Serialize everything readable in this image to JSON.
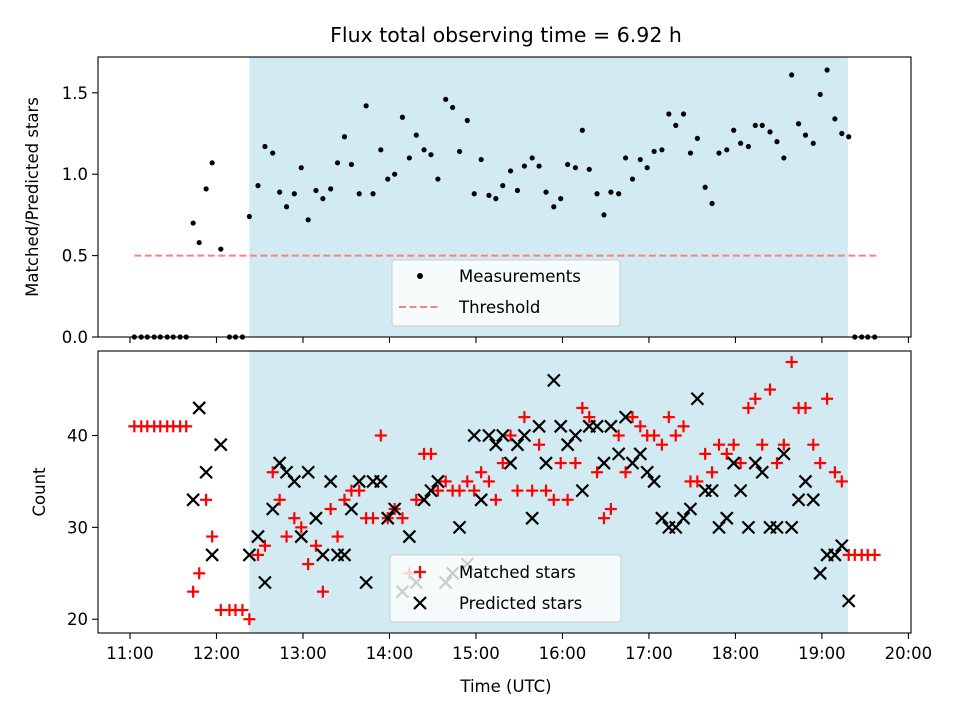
{
  "chart_data": [
    {
      "type": "scatter",
      "title": "Flux total observing time = 6.92 h",
      "ylabel": "Matched/Predicted stars",
      "xlim": [
        10.63,
        20.03
      ],
      "ylim": [
        0,
        1.72
      ],
      "yticks": [
        0.0,
        0.5,
        1.0,
        1.5
      ],
      "ytick_labels": [
        "0.0",
        "0.5",
        "1.0",
        "1.5"
      ],
      "shaded_span": [
        12.38,
        19.3
      ],
      "shaded_color": "#add8e6",
      "legend_position": "lower center",
      "legend": [
        "Measurements",
        "Threshold"
      ],
      "threshold": {
        "name": "Threshold",
        "y": 0.5,
        "x_range": [
          11.05,
          19.65
        ],
        "color": "#ff7f7f",
        "style": "dashed"
      },
      "series": [
        {
          "name": "Measurements",
          "color": "#000000",
          "marker": "dot",
          "x": [
            11.05,
            11.13,
            11.2,
            11.28,
            11.35,
            11.43,
            11.5,
            11.58,
            11.65,
            11.73,
            11.8,
            11.88,
            11.95,
            12.05,
            12.15,
            12.22,
            12.3,
            12.38,
            12.48,
            12.56,
            12.65,
            12.73,
            12.81,
            12.9,
            12.98,
            13.06,
            13.15,
            13.23,
            13.32,
            13.4,
            13.48,
            13.56,
            13.65,
            13.73,
            13.81,
            13.9,
            13.98,
            14.06,
            14.15,
            14.23,
            14.31,
            14.4,
            14.48,
            14.56,
            14.65,
            14.73,
            14.81,
            14.9,
            14.98,
            15.06,
            15.15,
            15.23,
            15.31,
            15.4,
            15.48,
            15.56,
            15.65,
            15.73,
            15.81,
            15.9,
            15.98,
            16.06,
            16.15,
            16.23,
            16.31,
            16.4,
            16.48,
            16.56,
            16.65,
            16.73,
            16.81,
            16.9,
            16.98,
            17.06,
            17.15,
            17.23,
            17.31,
            17.4,
            17.48,
            17.56,
            17.65,
            17.73,
            17.81,
            17.9,
            17.98,
            18.06,
            18.15,
            18.23,
            18.31,
            18.4,
            18.48,
            18.56,
            18.65,
            18.73,
            18.81,
            18.9,
            18.98,
            19.06,
            19.15,
            19.23,
            19.31,
            19.38,
            19.46,
            19.53,
            19.61
          ],
          "y": [
            0,
            0,
            0,
            0,
            0,
            0,
            0,
            0,
            0,
            0.7,
            0.58,
            0.91,
            1.07,
            0.54,
            0,
            0,
            0,
            0.74,
            0.93,
            1.17,
            1.13,
            0.89,
            0.8,
            0.88,
            1.04,
            0.72,
            0.9,
            0.85,
            0.91,
            1.07,
            1.23,
            1.06,
            0.88,
            1.42,
            0.88,
            1.15,
            0.97,
            1.0,
            1.35,
            1.1,
            1.24,
            1.15,
            1.12,
            0.97,
            1.46,
            1.41,
            1.14,
            1.33,
            0.88,
            1.09,
            0.87,
            0.85,
            0.93,
            1.02,
            0.9,
            1.05,
            1.1,
            1.05,
            0.89,
            0.8,
            0.85,
            1.06,
            1.04,
            1.27,
            1.03,
            0.88,
            0.75,
            0.89,
            0.88,
            1.1,
            0.97,
            1.09,
            1.04,
            1.14,
            1.15,
            1.37,
            1.3,
            1.37,
            1.13,
            1.22,
            0.92,
            0.82,
            1.13,
            1.15,
            1.27,
            1.19,
            1.17,
            1.3,
            1.3,
            1.26,
            1.2,
            1.1,
            1.61,
            1.31,
            1.24,
            1.19,
            1.49,
            1.64,
            1.34,
            1.25,
            1.23,
            0,
            0,
            0,
            0
          ]
        }
      ]
    },
    {
      "type": "scatter",
      "xlabel": "Time (UTC)",
      "ylabel": "Count",
      "xlim": [
        10.63,
        20.03
      ],
      "ylim": [
        18.5,
        49.2
      ],
      "xticks": [
        11,
        12,
        13,
        14,
        15,
        16,
        17,
        18,
        19,
        20
      ],
      "xtick_labels": [
        "11:00",
        "12:00",
        "13:00",
        "14:00",
        "15:00",
        "16:00",
        "17:00",
        "18:00",
        "19:00",
        "20:00"
      ],
      "yticks": [
        20,
        30,
        40
      ],
      "ytick_labels": [
        "20",
        "30",
        "40"
      ],
      "shaded_span": [
        12.38,
        19.3
      ],
      "shaded_color": "#add8e6",
      "legend_position": "lower center",
      "legend": [
        "Matched stars",
        "Predicted stars"
      ],
      "series": [
        {
          "name": "Matched stars",
          "color": "#ff0000",
          "marker": "plus",
          "x": [
            11.05,
            11.13,
            11.2,
            11.28,
            11.35,
            11.43,
            11.5,
            11.58,
            11.65,
            11.73,
            11.8,
            11.88,
            11.95,
            12.05,
            12.15,
            12.22,
            12.3,
            12.38,
            12.48,
            12.56,
            12.65,
            12.73,
            12.81,
            12.9,
            12.98,
            13.06,
            13.15,
            13.23,
            13.32,
            13.4,
            13.48,
            13.56,
            13.65,
            13.73,
            13.81,
            13.9,
            13.98,
            14.06,
            14.15,
            14.23,
            14.31,
            14.4,
            14.48,
            14.56,
            14.65,
            14.73,
            14.81,
            14.9,
            14.98,
            15.06,
            15.15,
            15.23,
            15.31,
            15.4,
            15.48,
            15.56,
            15.65,
            15.73,
            15.81,
            15.9,
            15.98,
            16.06,
            16.15,
            16.23,
            16.31,
            16.4,
            16.48,
            16.56,
            16.65,
            16.73,
            16.81,
            16.9,
            16.98,
            17.06,
            17.15,
            17.23,
            17.31,
            17.4,
            17.48,
            17.56,
            17.65,
            17.73,
            17.81,
            17.9,
            17.98,
            18.06,
            18.15,
            18.23,
            18.31,
            18.4,
            18.48,
            18.56,
            18.65,
            18.73,
            18.81,
            18.9,
            18.98,
            19.06,
            19.15,
            19.23,
            19.31,
            19.38,
            19.46,
            19.53,
            19.61
          ],
          "y": [
            41,
            41,
            41,
            41,
            41,
            41,
            41,
            41,
            41,
            23,
            25,
            33,
            29,
            21,
            21,
            21,
            21,
            20,
            27,
            28,
            36,
            33,
            29,
            31,
            30,
            26,
            28,
            23,
            32,
            29,
            33,
            34,
            34,
            31,
            31,
            40,
            31,
            32,
            31,
            25,
            33,
            38,
            38,
            34,
            35,
            34,
            34,
            35,
            34,
            36,
            35,
            33,
            37,
            40,
            34,
            42,
            34,
            39,
            34,
            33,
            37,
            33,
            37,
            43,
            42,
            36,
            31,
            32,
            40,
            36,
            42,
            41,
            40,
            40,
            39,
            42,
            40,
            41,
            35,
            35,
            38,
            36,
            39,
            38,
            39,
            37,
            43,
            44,
            39,
            45,
            37,
            39,
            48,
            43,
            43,
            39,
            37,
            44,
            36,
            35,
            27,
            27,
            27,
            27,
            27
          ]
        },
        {
          "name": "Predicted stars",
          "color": "#000000",
          "marker": "x",
          "x": [
            11.73,
            11.8,
            11.88,
            11.95,
            12.05,
            12.38,
            12.48,
            12.56,
            12.65,
            12.73,
            12.81,
            12.9,
            12.98,
            13.06,
            13.15,
            13.23,
            13.32,
            13.4,
            13.48,
            13.56,
            13.65,
            13.73,
            13.81,
            13.9,
            13.98,
            14.06,
            14.15,
            14.23,
            14.31,
            14.4,
            14.48,
            14.56,
            14.65,
            14.73,
            14.81,
            14.9,
            14.98,
            15.06,
            15.15,
            15.23,
            15.31,
            15.4,
            15.48,
            15.56,
            15.65,
            15.73,
            15.81,
            15.9,
            15.98,
            16.06,
            16.15,
            16.23,
            16.31,
            16.4,
            16.48,
            16.56,
            16.65,
            16.73,
            16.81,
            16.9,
            16.98,
            17.06,
            17.15,
            17.23,
            17.31,
            17.4,
            17.48,
            17.56,
            17.65,
            17.73,
            17.81,
            17.9,
            17.98,
            18.06,
            18.15,
            18.23,
            18.31,
            18.4,
            18.48,
            18.56,
            18.65,
            18.73,
            18.81,
            18.9,
            18.98,
            19.06,
            19.15,
            19.23,
            19.31
          ],
          "y": [
            33,
            43,
            36,
            27,
            39,
            27,
            29,
            24,
            32,
            37,
            36,
            35,
            29,
            36,
            31,
            27,
            35,
            27,
            27,
            32,
            35,
            24,
            35,
            35,
            31,
            32,
            23,
            29,
            24,
            33,
            34,
            35,
            24,
            25,
            30,
            26,
            40,
            33,
            40,
            39,
            40,
            37,
            39,
            40,
            31,
            41,
            37,
            46,
            41,
            39,
            40,
            34,
            41,
            41,
            37,
            41,
            38,
            42,
            37,
            38,
            36,
            35,
            31,
            30,
            30,
            31,
            32,
            44,
            34,
            34,
            30,
            31,
            37,
            34,
            30,
            37,
            36,
            30,
            30,
            38,
            30,
            33,
            35,
            33,
            25,
            27,
            27,
            28,
            22
          ]
        }
      ]
    }
  ]
}
